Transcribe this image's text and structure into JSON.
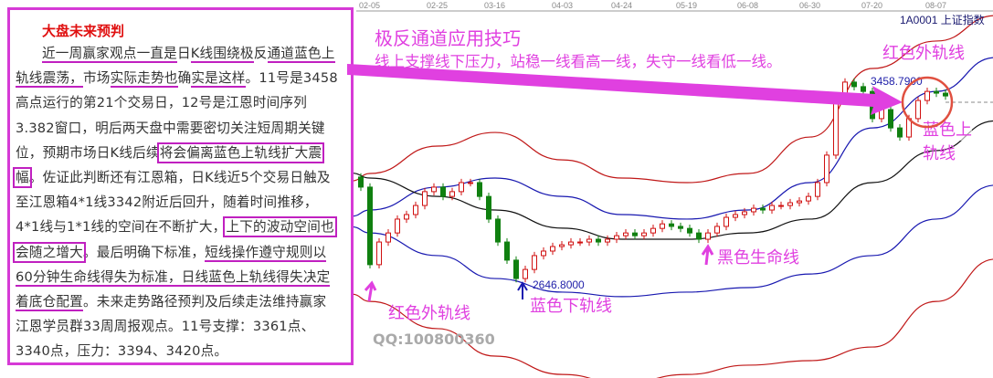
{
  "chart_data": {
    "type": "candlestick",
    "title": "1A0001 上证指数",
    "x_ticks": [
      "02-05",
      "02-25",
      "03-16",
      "04-03",
      "04-24",
      "05-19",
      "06-08",
      "06-30",
      "07-20",
      "08-07"
    ],
    "ylim": [
      2277,
      3778
    ],
    "closes": [
      3035,
      2727,
      2817,
      2853,
      2908,
      2926,
      2962,
      3017,
      3035,
      2998,
      3017,
      3053,
      3053,
      2998,
      2908,
      2817,
      2745,
      2672,
      2708,
      2763,
      2781,
      2799,
      2806,
      2817,
      2817,
      2828,
      2817,
      2828,
      2842,
      2853,
      2842,
      2853,
      2871,
      2889,
      2879,
      2871,
      2853,
      2828,
      2853,
      2879,
      2915,
      2926,
      2937,
      2951,
      2944,
      2962,
      2962,
      2973,
      2980,
      2998,
      3053,
      3162,
      3379,
      3452,
      3434,
      3415,
      3307,
      3343,
      3270,
      3234,
      3307,
      3379,
      3415,
      3408,
      3397
    ],
    "bands": [
      {
        "name": "红色外轨线",
        "color": "#c01818",
        "values": [
          3089,
          3198,
          3252,
          3143,
          3071,
          3053,
          3089,
          3234,
          3506,
          3615
        ]
      },
      {
        "name": "蓝色上轨线",
        "color": "#1818b0",
        "values": [
          2944,
          3035,
          3071,
          2998,
          2926,
          2908,
          2944,
          3053,
          3270,
          3415
        ]
      },
      {
        "name": "黑色生命线",
        "color": "#111111",
        "values": [
          3071,
          2998,
          2944,
          2872,
          2828,
          2828,
          2853,
          2908,
          3053,
          3180
        ]
      },
      {
        "name": "蓝色下轨线",
        "color": "#1818b0",
        "values": [
          2853,
          2763,
          2672,
          2618,
          2600,
          2618,
          2636,
          2690,
          2763,
          2908
        ]
      },
      {
        "name": "红色外轨线",
        "color": "#c01818",
        "values": [
          2581,
          2473,
          2364,
          2291,
          2255,
          2291,
          2328,
          2346,
          2400,
          2581
        ]
      }
    ],
    "high_label": "3458.7900",
    "low_label": "2646.8000",
    "high_value": 3458.79,
    "low_value": 2646.8
  },
  "annotations": {
    "title": "极反通道应用技巧",
    "subtitle": "线上支撑线下压力，站稳一线看高一线，失守一线看低一线。",
    "red_outer_top": "红色外轨线",
    "blue_upper_1": "蓝色上",
    "blue_upper_2": "轨线",
    "black_life": "黑色生命线",
    "red_outer_bottom": "红色外轨线",
    "blue_lower": "蓝色下轨线",
    "qq": "QQ:100800360",
    "accent": "#e040e0"
  },
  "panel": {
    "title": "大盘未来预判",
    "lines": [
      [
        [
          "",
          "近一周赢家"
        ],
        [
          "",
          "观点一直是"
        ],
        [
          "n",
          "日"
        ],
        [
          "u",
          "K线围绕极"
        ],
        [
          "n",
          "反"
        ],
        [
          "u",
          "通道蓝色上"
        ]
      ],
      [
        [
          "u",
          "轨线震荡，"
        ],
        [
          "n",
          "市场"
        ],
        [
          "u",
          "实际走势也"
        ],
        [
          "n",
          "确"
        ],
        [
          "u",
          "实是这样"
        ],
        [
          "n",
          "。11号是3458"
        ]
      ],
      [
        [
          "n",
          "高点运行的第21个交易日，12号是江恩时间序列"
        ]
      ],
      [
        [
          "n",
          "3.382窗口，明后两天盘中需要密切关注短周期关键"
        ]
      ],
      [
        [
          "n",
          "位，预期市场日K线后续"
        ],
        [
          "b",
          "将会偏离蓝色上轨线扩大震"
        ]
      ],
      [
        [
          "b",
          "幅"
        ],
        [
          "n",
          "。佐证此判断还有江恩箱，日K线近5个交易日触及"
        ]
      ],
      [
        [
          "n",
          "至江恩箱4*1线3342附近后回升，随着时间推移，"
        ]
      ],
      [
        [
          "n",
          "4*1线与1*1线的空间在不断扩大，"
        ],
        [
          "b",
          "上下的波动空间也"
        ]
      ],
      [
        [
          "b",
          "会随之增大"
        ],
        [
          "n",
          "。最后明确下标准，"
        ],
        [
          "u",
          "短线操作遵守规则以"
        ]
      ],
      [
        [
          "u",
          "60分钟生命线得失为标准，日线蓝色上轨线得失决定"
        ]
      ],
      [
        [
          "u",
          "着底仓配置"
        ],
        [
          "n",
          "。未来走势路径预判及后续走法维持赢家"
        ]
      ],
      [
        [
          "n",
          "江恩学员群33周周报观点。11号支撑：3361点、"
        ]
      ],
      [
        [
          "n",
          "3340点，压力：3394、3420点。"
        ]
      ]
    ]
  }
}
